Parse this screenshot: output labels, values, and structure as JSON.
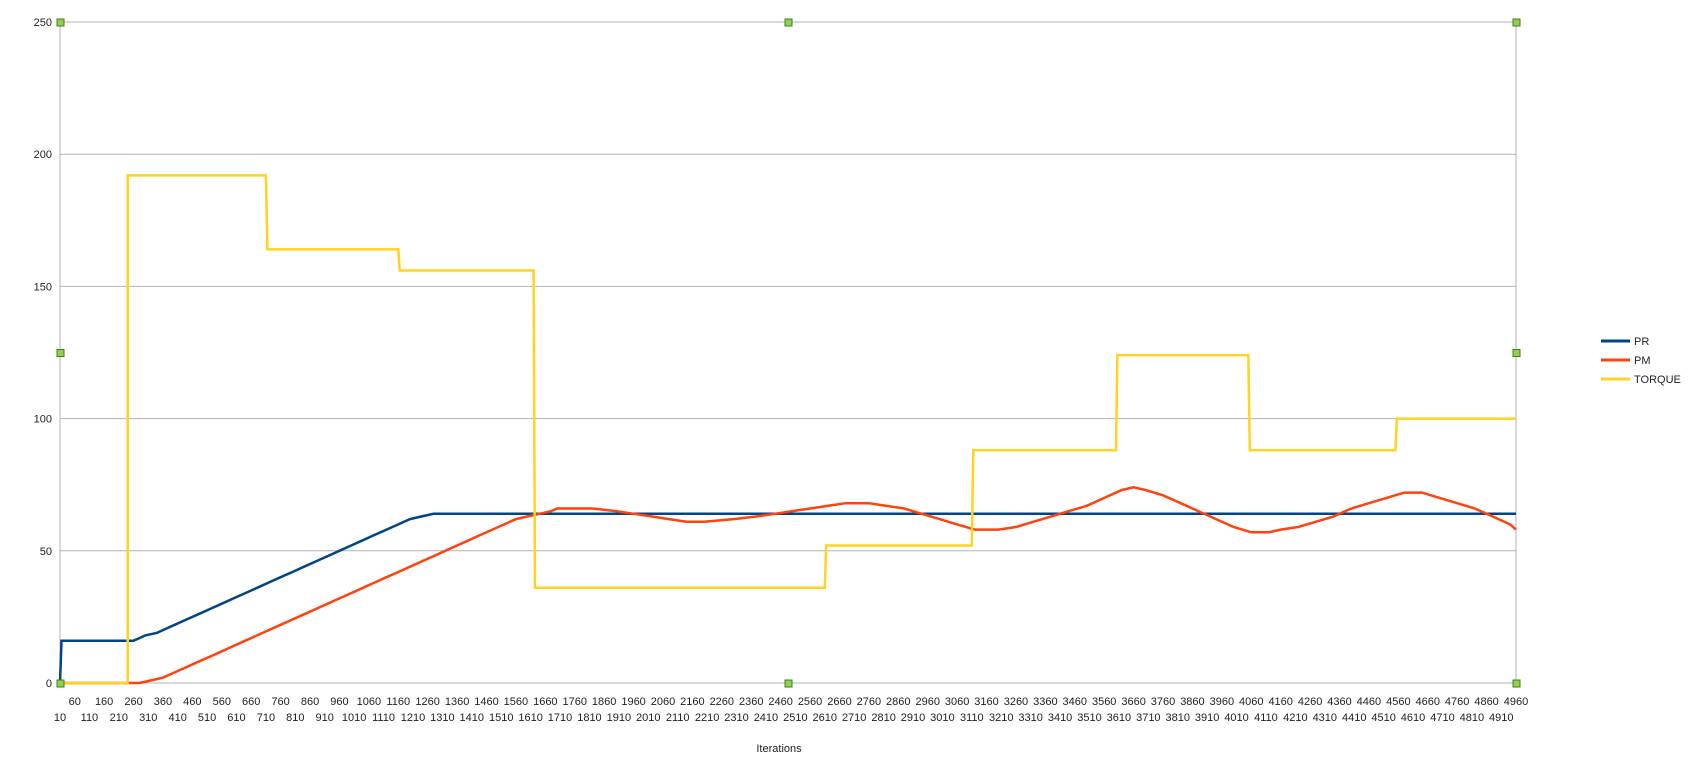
{
  "chart_data": {
    "type": "line",
    "title": "",
    "xlabel": "Iterations",
    "ylabel": "",
    "ylim": [
      0,
      250
    ],
    "xlim": [
      10,
      4960
    ],
    "yticks": [
      0,
      50,
      100,
      150,
      200,
      250
    ],
    "x_tick_labels_row1": [
      "60",
      "160",
      "260",
      "360",
      "460",
      "560",
      "660",
      "760",
      "860",
      "960",
      "1060",
      "1160",
      "1260",
      "1360",
      "1460",
      "1560",
      "1660",
      "1760",
      "1860",
      "1960",
      "2060",
      "2160",
      "2260",
      "2360",
      "2460",
      "2560",
      "2660",
      "2760",
      "2860",
      "2960",
      "3060",
      "3160",
      "3260",
      "3360",
      "3460",
      "3560",
      "3660",
      "3760",
      "3860",
      "3960",
      "4060",
      "4160",
      "4260",
      "4360",
      "4460",
      "4560",
      "4660",
      "4760",
      "4860",
      "4960"
    ],
    "x_tick_labels_row2": [
      "10",
      "110",
      "210",
      "310",
      "410",
      "510",
      "610",
      "710",
      "810",
      "910",
      "1010",
      "1110",
      "1210",
      "1310",
      "1410",
      "1510",
      "1610",
      "1710",
      "1810",
      "1910",
      "2010",
      "2110",
      "2210",
      "2310",
      "2410",
      "2510",
      "2610",
      "2710",
      "2810",
      "2910",
      "3010",
      "3110",
      "3210",
      "3310",
      "3410",
      "3510",
      "3610",
      "3710",
      "3810",
      "3910",
      "4010",
      "4110",
      "4210",
      "4310",
      "4410",
      "4510",
      "4610",
      "4710",
      "4810",
      "4910"
    ],
    "grid": "horizontal",
    "legend_position": "right",
    "series": [
      {
        "name": "PR",
        "color": "#004586",
        "x": [
          10,
          15,
          20,
          240,
          260,
          280,
          300,
          340,
          360,
          400,
          440,
          480,
          520,
          560,
          600,
          640,
          680,
          720,
          760,
          800,
          840,
          880,
          920,
          960,
          1000,
          1040,
          1080,
          1120,
          1160,
          1200,
          1240,
          1280,
          1300,
          1620,
          2500,
          3000,
          3500,
          4000,
          4500,
          4960
        ],
        "y": [
          0,
          16,
          16,
          16,
          16,
          17,
          18,
          19,
          20,
          22,
          24,
          26,
          28,
          30,
          32,
          34,
          36,
          38,
          40,
          42,
          44,
          46,
          48,
          50,
          52,
          54,
          56,
          58,
          60,
          62,
          63,
          64,
          64,
          64,
          64,
          64,
          64,
          64,
          64,
          64
        ]
      },
      {
        "name": "PM",
        "color": "#ff420e",
        "x": [
          10,
          100,
          200,
          260,
          280,
          320,
          360,
          400,
          440,
          480,
          520,
          560,
          600,
          640,
          680,
          720,
          760,
          800,
          840,
          880,
          920,
          960,
          1000,
          1040,
          1080,
          1120,
          1160,
          1200,
          1240,
          1280,
          1320,
          1360,
          1400,
          1440,
          1480,
          1520,
          1560,
          1600,
          1640,
          1680,
          1700,
          1760,
          1820,
          1900,
          1960,
          2020,
          2080,
          2140,
          2200,
          2300,
          2380,
          2440,
          2500,
          2560,
          2620,
          2680,
          2760,
          2820,
          2880,
          2940,
          3000,
          3060,
          3120,
          3200,
          3260,
          3320,
          3380,
          3440,
          3500,
          3560,
          3620,
          3660,
          3700,
          3760,
          3820,
          3880,
          3940,
          4000,
          4060,
          4120,
          4160,
          4220,
          4280,
          4340,
          4400,
          4460,
          4520,
          4580,
          4640,
          4700,
          4760,
          4820,
          4880,
          4940,
          4960
        ],
        "y": [
          0,
          0,
          0,
          0,
          0,
          1,
          2,
          4,
          6,
          8,
          10,
          12,
          14,
          16,
          18,
          20,
          22,
          24,
          26,
          28,
          30,
          32,
          34,
          36,
          38,
          40,
          42,
          44,
          46,
          48,
          50,
          52,
          54,
          56,
          58,
          60,
          62,
          63,
          64,
          65,
          66,
          66,
          66,
          65,
          64,
          63,
          62,
          61,
          61,
          62,
          63,
          64,
          65,
          66,
          67,
          68,
          68,
          67,
          66,
          64,
          62,
          60,
          58,
          58,
          59,
          61,
          63,
          65,
          67,
          70,
          73,
          74,
          73,
          71,
          68,
          65,
          62,
          59,
          57,
          57,
          58,
          59,
          61,
          63,
          66,
          68,
          70,
          72,
          72,
          70,
          68,
          66,
          63,
          60,
          58
        ]
      },
      {
        "name": "TORQUE",
        "color": "#ffd320",
        "x": [
          10,
          240,
          240,
          245,
          710,
          715,
          1160,
          1165,
          1620,
          1625,
          2610,
          2615,
          3110,
          3115,
          3600,
          3605,
          4050,
          4055,
          4550,
          4555,
          4960
        ],
        "y": [
          0,
          0,
          192,
          192,
          192,
          164,
          164,
          156,
          156,
          36,
          36,
          52,
          52,
          88,
          88,
          124,
          124,
          88,
          88,
          100,
          100
        ]
      }
    ]
  }
}
